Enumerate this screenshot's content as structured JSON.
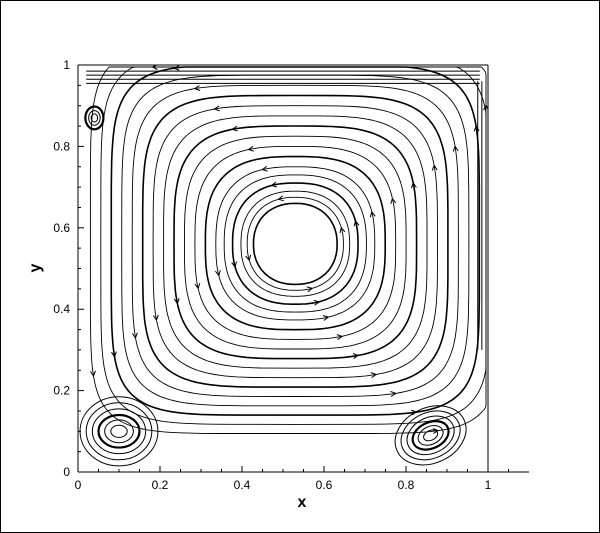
{
  "chart_data": {
    "type": "streamline",
    "title": "",
    "xlabel": "x",
    "ylabel": "y",
    "xlim": [
      0,
      1.1
    ],
    "ylim": [
      0,
      1
    ],
    "x_ticks": [
      "0",
      "0.2",
      "0.4",
      "0.6",
      "0.8",
      "1"
    ],
    "y_ticks": [
      "0",
      "0.2",
      "0.4",
      "0.6",
      "0.8",
      "1"
    ],
    "grid": false,
    "domain": {
      "x": [
        0,
        1
      ],
      "y": [
        0,
        1
      ]
    },
    "primary_vortex": {
      "center": [
        0.53,
        0.56
      ],
      "core_radius": 0.09,
      "rotation": "clockwise",
      "radii": [
        0.1,
        0.115,
        0.13,
        0.15,
        0.17,
        0.19,
        0.215,
        0.24,
        0.265,
        0.29,
        0.315,
        0.34,
        0.365,
        0.39,
        0.415,
        0.44,
        0.465,
        0.49
      ]
    },
    "secondary_vortices": [
      {
        "name": "bottom-left",
        "center": [
          0.1,
          0.1
        ],
        "rx": [
          0.02,
          0.035,
          0.05,
          0.065,
          0.08,
          0.095
        ],
        "ry": [
          0.015,
          0.028,
          0.04,
          0.055,
          0.07,
          0.085
        ]
      },
      {
        "name": "bottom-right",
        "center": [
          0.86,
          0.09
        ],
        "rx": [
          0.018,
          0.032,
          0.046,
          0.06,
          0.075,
          0.09
        ],
        "ry": [
          0.012,
          0.022,
          0.032,
          0.044,
          0.056,
          0.068
        ]
      },
      {
        "name": "top-left",
        "center": [
          0.04,
          0.87
        ],
        "rx": [
          0.008,
          0.014,
          0.022
        ],
        "ry": [
          0.01,
          0.018,
          0.028
        ]
      }
    ],
    "line_color": "#000000"
  }
}
